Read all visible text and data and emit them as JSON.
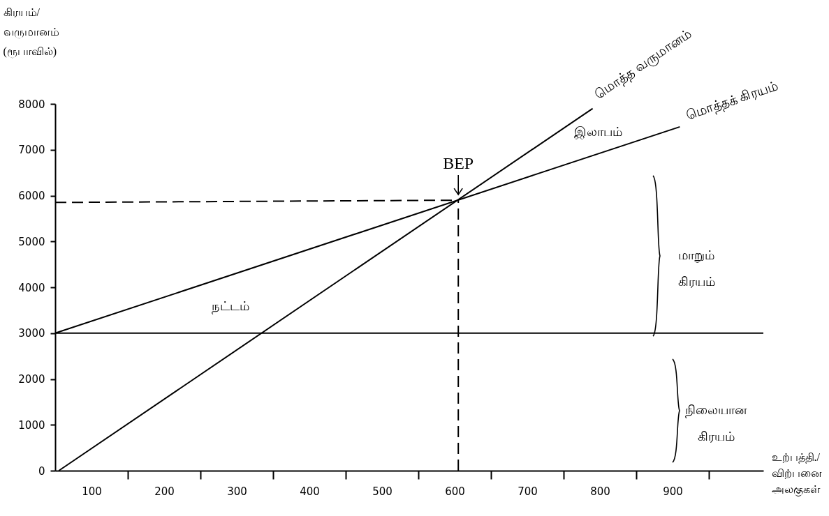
{
  "chart_data": {
    "type": "line",
    "xlabel": "உற்பத்தி./\nவிற்பனை\nஅலகுகள்",
    "ylabel": "கிரயம்/\nவருமானம்\n(ரூபாவில்)",
    "xlim": [
      50,
      1025
    ],
    "ylim": [
      0,
      8000
    ],
    "xticks": [
      100,
      {
        "value": 150,
        "label": null
      },
      200,
      {
        "value": 250,
        "label": null
      },
      300,
      {
        "value": 350,
        "label": null
      },
      400,
      {
        "value": 450,
        "label": null
      },
      500,
      {
        "value": 550,
        "label": null
      },
      600,
      {
        "value": 650,
        "label": null
      },
      700,
      {
        "value": 750,
        "label": null
      },
      800,
      {
        "value": 850,
        "label": null
      },
      900,
      {
        "value": 950,
        "label": null
      }
    ],
    "yticks": [
      0,
      1000,
      2000,
      3000,
      4000,
      5000,
      6000,
      7000,
      8000
    ],
    "grid": false,
    "legend": false,
    "marker": "none",
    "series": [
      {
        "name": "மொத்த வருமானம்",
        "color": "#000000",
        "x": [
          55,
          790
        ],
        "values": [
          0,
          7900
        ]
      },
      {
        "name": "மொத்தக் கிரயம்",
        "color": "#000000",
        "x": [
          50,
          910
        ],
        "values": [
          3000,
          7500
        ]
      },
      {
        "color": "#000000",
        "x": [
          50,
          1025
        ],
        "values": [
          3000,
          3000
        ]
      },
      {
        "color": "#000000",
        "x": [
          605,
          605
        ],
        "values": [
          0,
          5900
        ],
        "line_style": "dashed"
      },
      {
        "color": "#000000",
        "x": [
          50,
          605
        ],
        "values": [
          5850,
          5900
        ],
        "line_style": "dashed"
      }
    ],
    "annotations": [
      {
        "text": "BEP",
        "x": 605,
        "y": 5900
      },
      "இலாபம்",
      "நட்டம்",
      "மாறும்\nகிரயம்",
      "நிலையான\nகிரயம்"
    ]
  }
}
